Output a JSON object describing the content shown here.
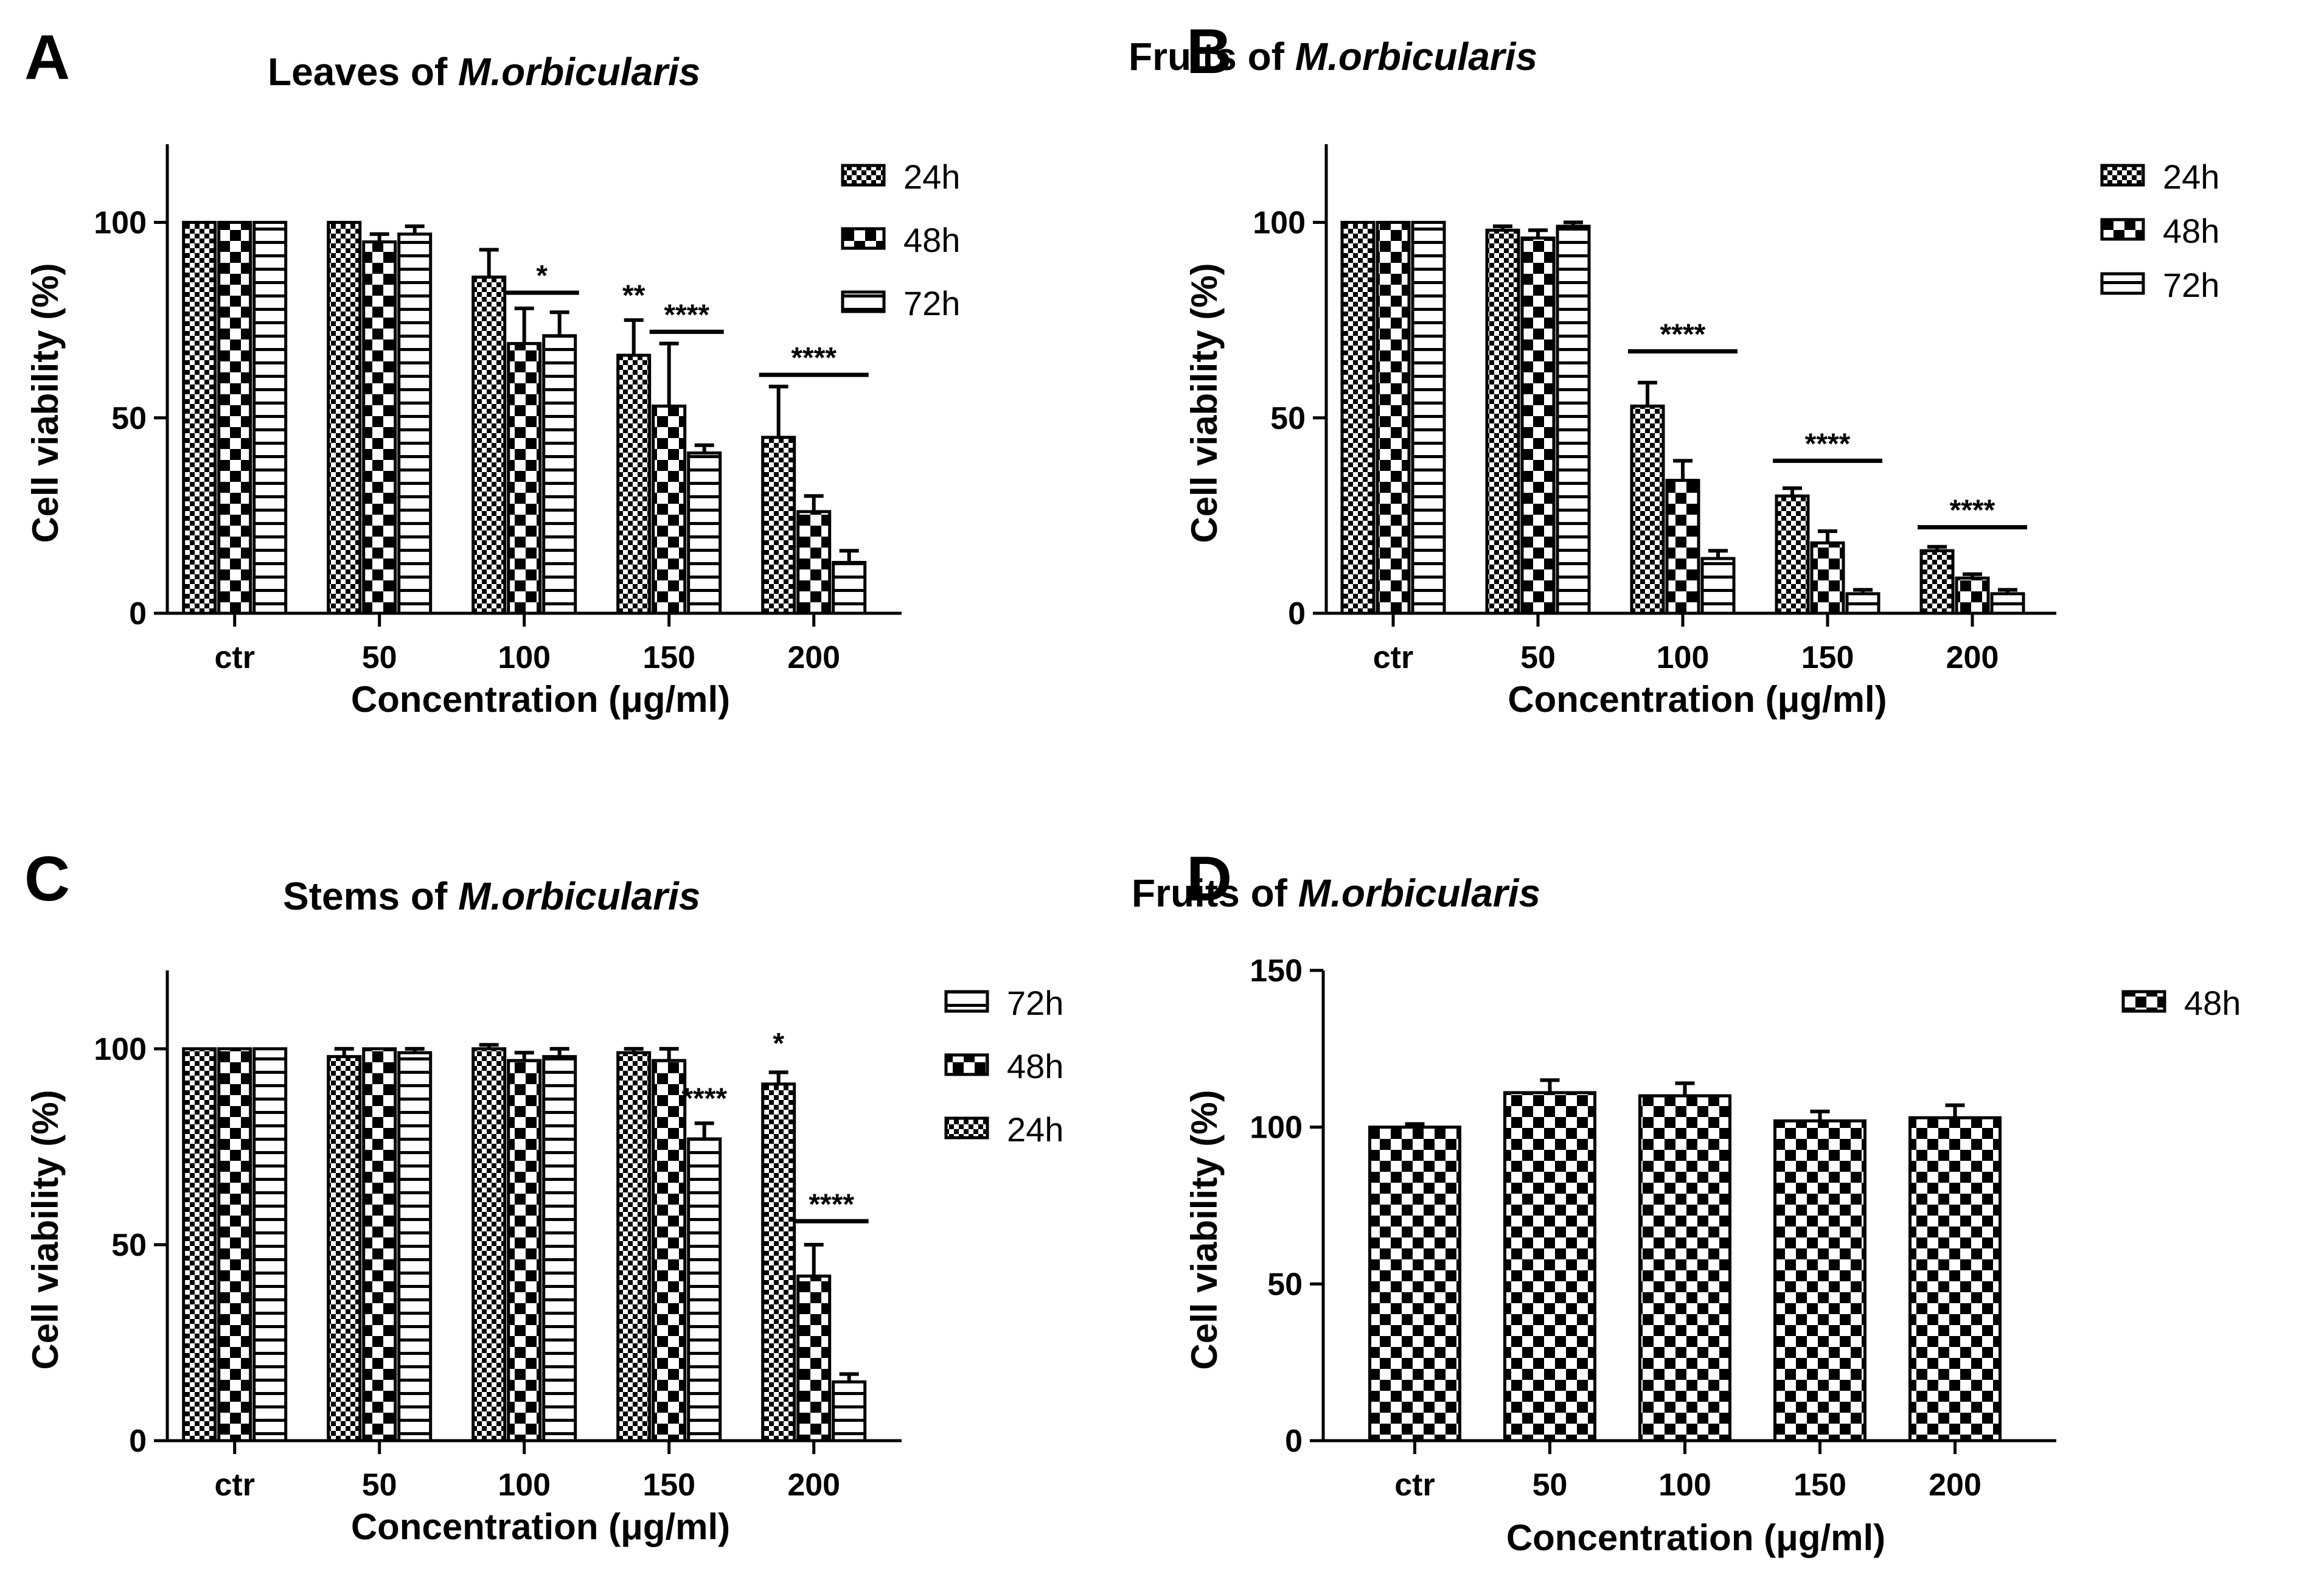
{
  "chart_data": [
    {
      "panel": "A",
      "type": "bar",
      "title_plain": "Leaves of ",
      "title_italic": "M.orbicularis",
      "xlabel": "Concentration (μg/ml)",
      "ylabel": "Cell viability (%)",
      "ylim": [
        0,
        120
      ],
      "yticks": [
        0,
        50,
        100
      ],
      "categories": [
        "ctr",
        "50",
        "100",
        "150",
        "200"
      ],
      "legend_position": "top-right",
      "series": [
        {
          "name": "24h",
          "pattern": "fine",
          "values": [
            100,
            100,
            86,
            66,
            45
          ],
          "errors": [
            0,
            0,
            7,
            9,
            13
          ]
        },
        {
          "name": "48h",
          "pattern": "coarse",
          "values": [
            100,
            95,
            69,
            53,
            26
          ],
          "errors": [
            0,
            2,
            9,
            16,
            4
          ]
        },
        {
          "name": "72h",
          "pattern": "hlines",
          "values": [
            100,
            97,
            71,
            41,
            13
          ],
          "errors": [
            0,
            2,
            6,
            2,
            3
          ]
        }
      ],
      "annotations": [
        {
          "text": "*",
          "category": 2,
          "from": 1,
          "to": 2,
          "y": 82
        },
        {
          "text": "**",
          "category": 3,
          "from": 0,
          "to": 0,
          "y": 77,
          "no_line": true
        },
        {
          "text": "****",
          "category": 3,
          "from": 1,
          "to": 2,
          "y": 72
        },
        {
          "text": "****",
          "category": 4,
          "from": 0,
          "to": 2,
          "y": 61
        }
      ]
    },
    {
      "panel": "B",
      "type": "bar",
      "title_plain": "Fruits of ",
      "title_italic": "M.orbicularis",
      "xlabel": "Concentration (μg/ml)",
      "ylabel": "Cell viability (%)",
      "ylim": [
        0,
        120
      ],
      "yticks": [
        0,
        50,
        100
      ],
      "categories": [
        "ctr",
        "50",
        "100",
        "150",
        "200"
      ],
      "legend_position": "top-right",
      "series": [
        {
          "name": "24h",
          "pattern": "fine",
          "values": [
            100,
            98,
            53,
            30,
            16
          ],
          "errors": [
            0,
            1,
            6,
            2,
            1
          ]
        },
        {
          "name": "48h",
          "pattern": "coarse",
          "values": [
            100,
            96,
            34,
            18,
            9
          ],
          "errors": [
            0,
            2,
            5,
            3,
            1
          ]
        },
        {
          "name": "72h",
          "pattern": "hlines",
          "values": [
            100,
            99,
            14,
            5,
            5
          ],
          "errors": [
            0,
            1,
            2,
            1,
            1
          ]
        }
      ],
      "annotations": [
        {
          "text": "****",
          "category": 2,
          "from": 0,
          "to": 2,
          "y": 67
        },
        {
          "text": "****",
          "category": 3,
          "from": 0,
          "to": 2,
          "y": 39
        },
        {
          "text": "****",
          "category": 4,
          "from": 0,
          "to": 2,
          "y": 22
        }
      ]
    },
    {
      "panel": "C",
      "type": "bar",
      "title_plain": "Stems of ",
      "title_italic": "M.orbicularis",
      "xlabel": "Concentration (μg/ml)",
      "ylabel": "Cell viability (%)",
      "ylim": [
        0,
        120
      ],
      "yticks": [
        0,
        50,
        100
      ],
      "categories": [
        "ctr",
        "50",
        "100",
        "150",
        "200"
      ],
      "legend_position": "top-right",
      "legend_order": [
        "72h",
        "48h",
        "24h"
      ],
      "series": [
        {
          "name": "24h",
          "pattern": "fine",
          "values": [
            100,
            98,
            100,
            99,
            91
          ],
          "errors": [
            0,
            2,
            1,
            1,
            3
          ]
        },
        {
          "name": "48h",
          "pattern": "coarse",
          "values": [
            100,
            100,
            97,
            97,
            42
          ],
          "errors": [
            0,
            0,
            2,
            3,
            8
          ]
        },
        {
          "name": "72h",
          "pattern": "hlines",
          "values": [
            100,
            99,
            98,
            77,
            15
          ],
          "errors": [
            0,
            1,
            2,
            4,
            2
          ]
        }
      ],
      "annotations": [
        {
          "text": "****",
          "category": 3,
          "from": 2,
          "to": 2,
          "y": 83,
          "no_line": true
        },
        {
          "text": "*",
          "category": 4,
          "from": 0,
          "to": 0,
          "y": 97,
          "no_line": true
        },
        {
          "text": "****",
          "category": 4,
          "from": 1,
          "to": 2,
          "y": 56
        }
      ]
    },
    {
      "panel": "D",
      "type": "bar",
      "title_plain": "Fruits of ",
      "title_italic": "M.orbicularis",
      "xlabel": "Concentration (μg/ml)",
      "ylabel": "Cell viability (%)",
      "ylim": [
        0,
        150
      ],
      "yticks": [
        0,
        50,
        100,
        150
      ],
      "categories": [
        "ctr",
        "50",
        "100",
        "150",
        "200"
      ],
      "legend_position": "top-right",
      "series": [
        {
          "name": "48h",
          "pattern": "coarse",
          "values": [
            100,
            111,
            110,
            102,
            103
          ],
          "errors": [
            1,
            4,
            4,
            3,
            4
          ]
        }
      ],
      "annotations": []
    }
  ]
}
